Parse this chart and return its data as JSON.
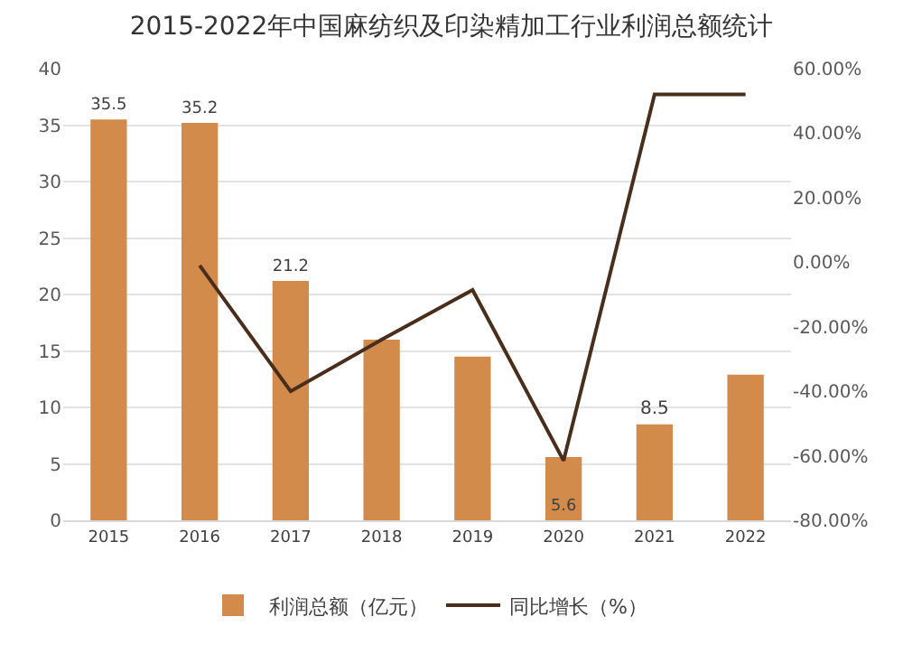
{
  "chart_data": {
    "type": "bar",
    "title": "2015-2022年中国麻纺织及印染精加工行业利润总额统计",
    "categories": [
      "2015",
      "2016",
      "2017",
      "2018",
      "2019",
      "2020",
      "2021",
      "2022"
    ],
    "series": [
      {
        "name": "利润总额（亿元）",
        "color": "#d38b4c",
        "values": [
          35.5,
          35.2,
          21.2,
          16.0,
          14.5,
          5.6,
          8.5,
          12.9
        ],
        "value_labels": [
          "35.5",
          "35.2",
          "21.2",
          null,
          null,
          "5.6",
          "8.5",
          null
        ]
      },
      {
        "name": "同比增长（%）",
        "type": "line",
        "axis": "y2",
        "color": "#4a2e1c",
        "values": [
          null,
          -1,
          -40,
          -24,
          -8.6,
          -61.5,
          52,
          52
        ]
      }
    ],
    "ylim": [
      0,
      40
    ],
    "yticks": [
      0,
      5,
      10,
      15,
      20,
      25,
      30,
      35,
      40
    ],
    "y2lim": [
      -80,
      60
    ],
    "y2ticks": [
      {
        "value": -80,
        "label": "-80.00%"
      },
      {
        "value": -60,
        "label": "-60.00%"
      },
      {
        "value": -40,
        "label": "-40.00%"
      },
      {
        "value": -20,
        "label": "-20.00%"
      },
      {
        "value": 0,
        "label": "0.00%"
      },
      {
        "value": 20,
        "label": "20.00%"
      },
      {
        "value": 40,
        "label": "40.00%"
      },
      {
        "value": 60,
        "label": "60.00%"
      }
    ],
    "grid": "y",
    "legend": "bottom",
    "marker": "none",
    "line_style": "solid"
  }
}
